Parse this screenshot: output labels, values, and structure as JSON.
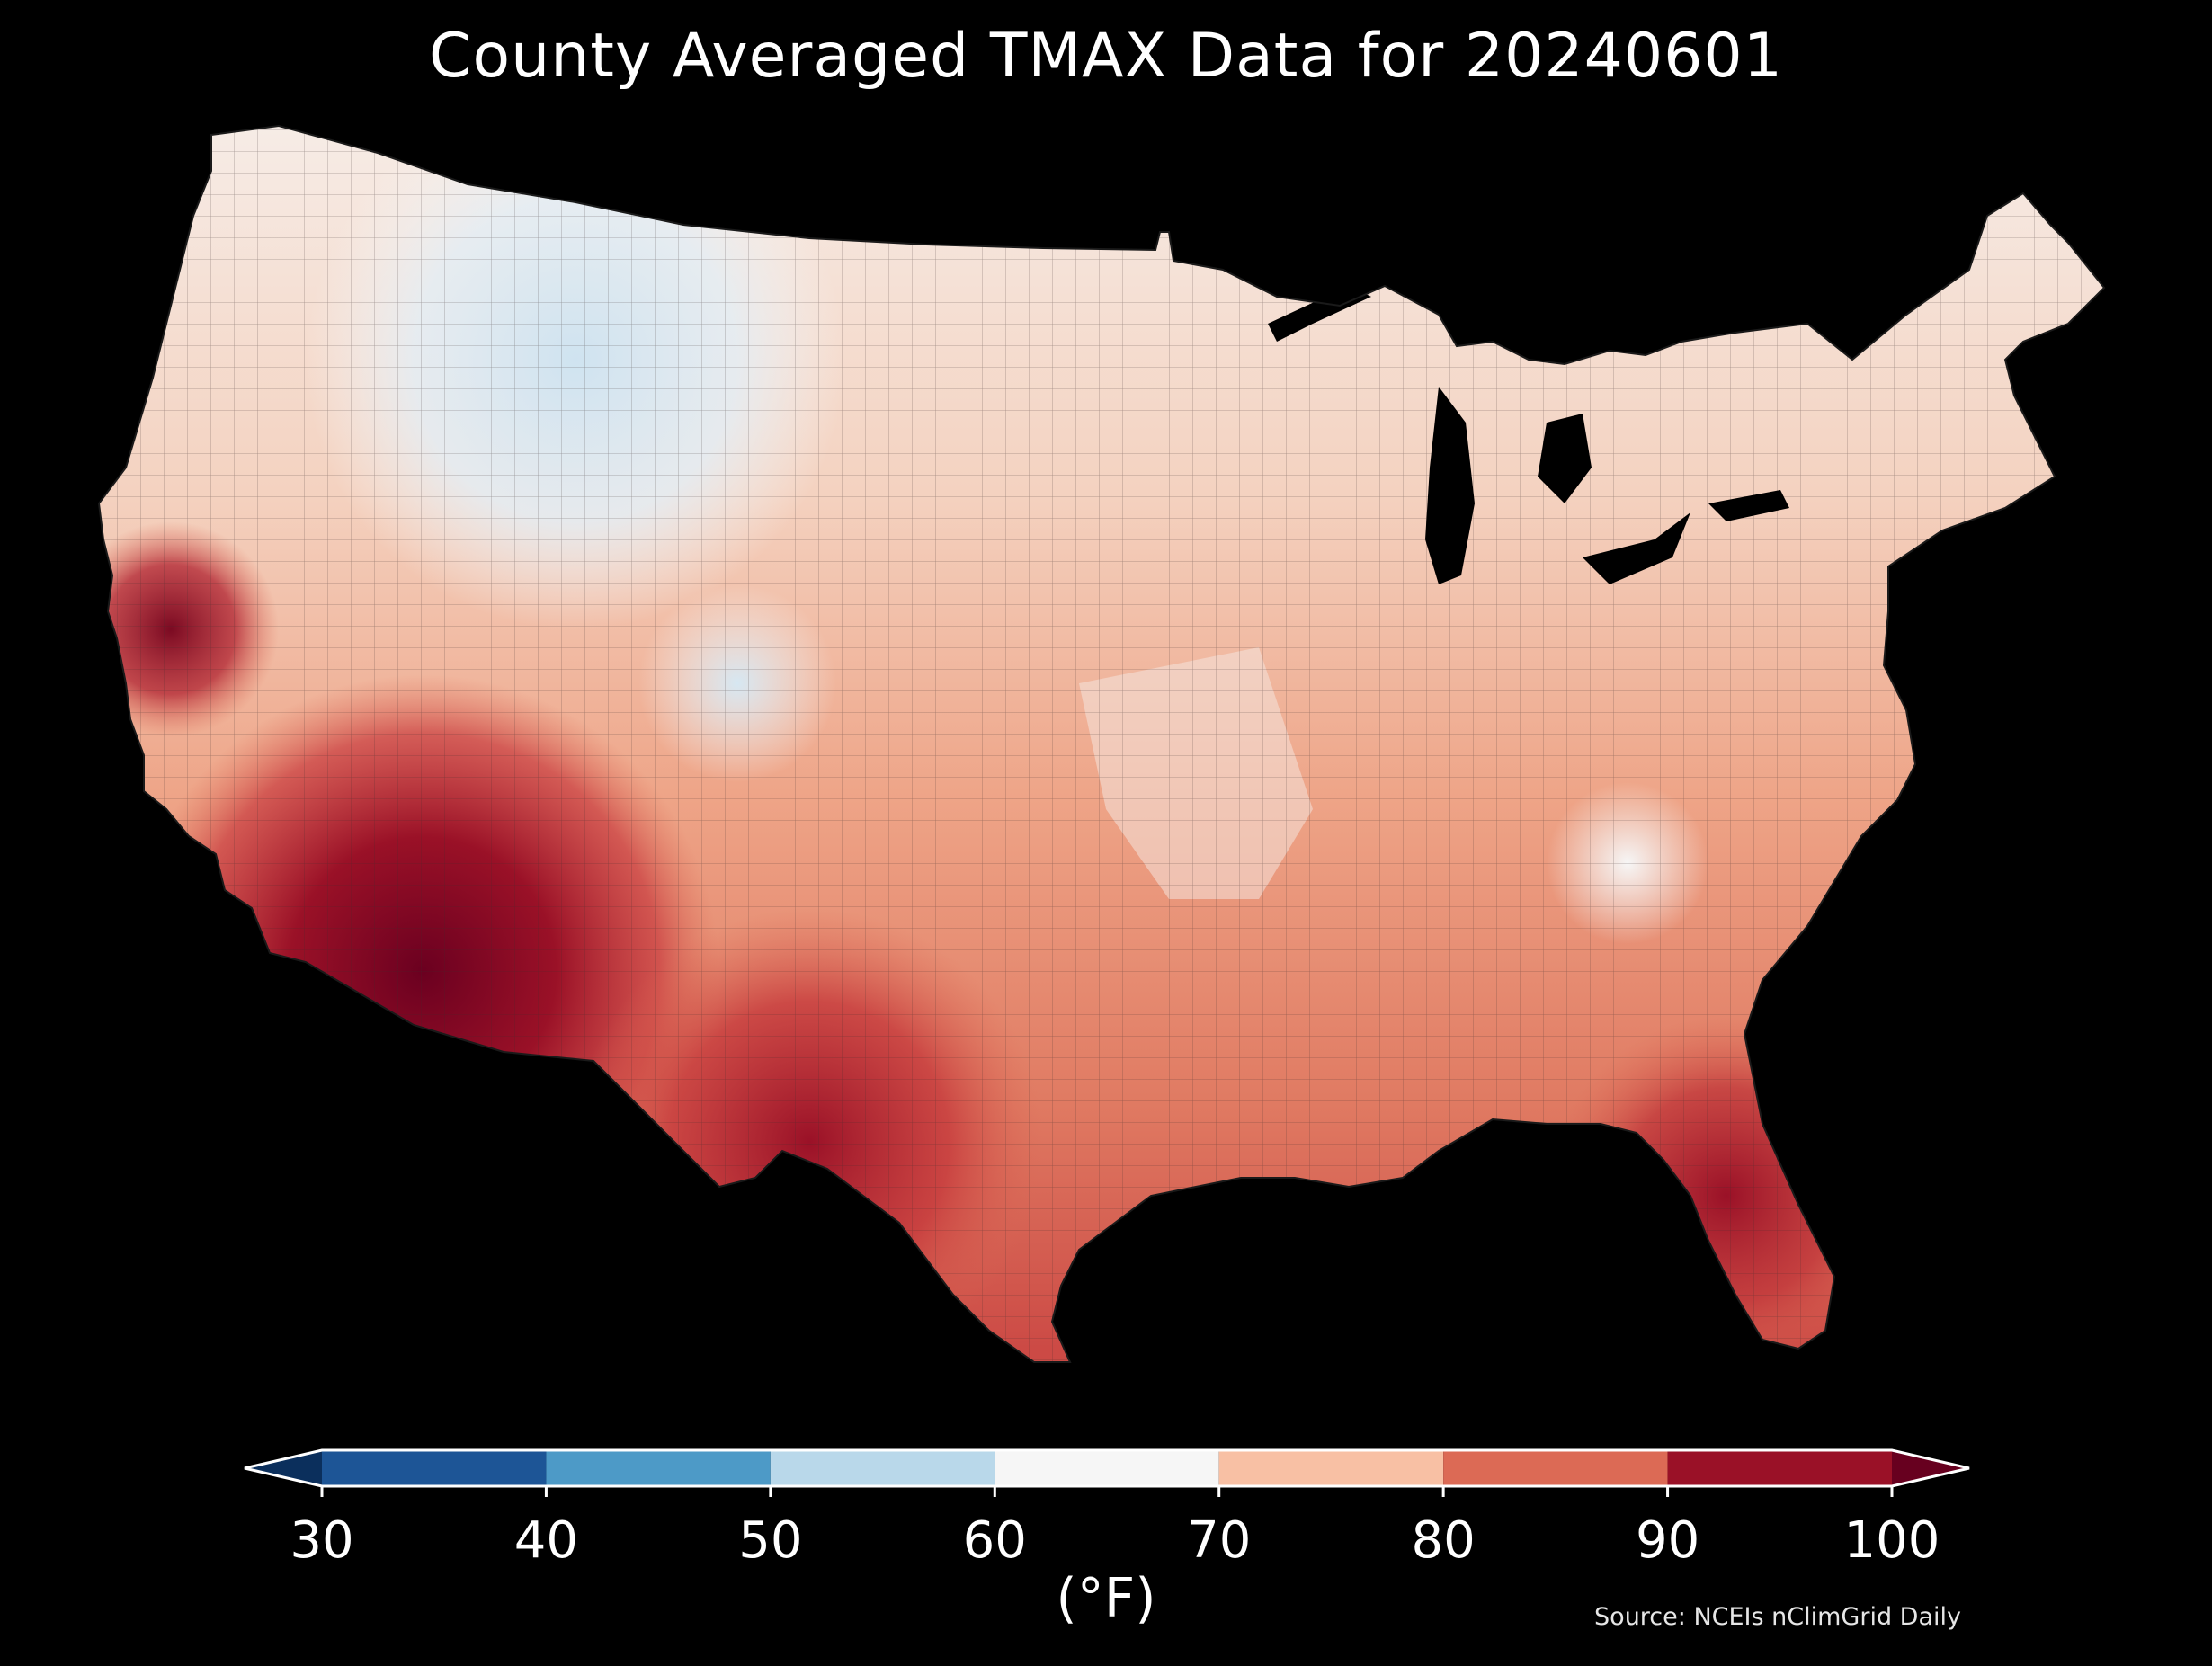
{
  "title": "County Averaged TMAX Data for 20240601",
  "colorbar": {
    "label": "(°F)",
    "ticks": [
      30,
      40,
      50,
      60,
      70,
      80,
      90,
      100
    ],
    "under_color": "#0b2f5c",
    "over_color": "#67001f",
    "bins": [
      {
        "min": 30,
        "max": 40,
        "color": "#1d5596"
      },
      {
        "min": 40,
        "max": 50,
        "color": "#4d9ac7"
      },
      {
        "min": 50,
        "max": 60,
        "color": "#b9d8ea"
      },
      {
        "min": 60,
        "max": 70,
        "color": "#f6f6f6"
      },
      {
        "min": 70,
        "max": 80,
        "color": "#f8c0a4"
      },
      {
        "min": 80,
        "max": 90,
        "color": "#dc6a55"
      },
      {
        "min": 90,
        "max": 100,
        "color": "#9a1127"
      }
    ]
  },
  "source": "Source: NCEIs nClimGrid Daily",
  "map": {
    "region": "Contiguous United States",
    "variable": "TMAX",
    "units": "°F",
    "background": "#000000",
    "county_border_color": "#2a2a2a"
  }
}
